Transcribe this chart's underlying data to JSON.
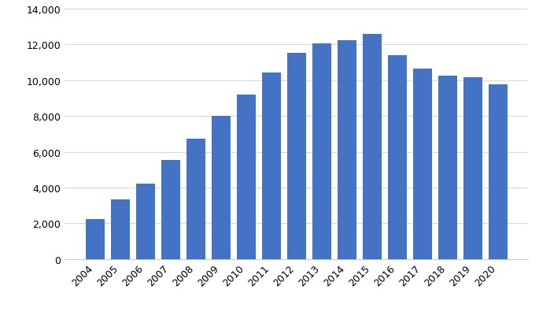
{
  "categories": [
    "2004",
    "2005",
    "2006",
    "2007",
    "2008",
    "2009",
    "2010",
    "2011",
    "2012",
    "2013",
    "2014",
    "2015",
    "2016",
    "2017",
    "2018",
    "2019",
    "2020"
  ],
  "values": [
    2250,
    3350,
    4200,
    5550,
    6750,
    8000,
    9200,
    10450,
    11550,
    12050,
    12250,
    12600,
    11400,
    10650,
    10250,
    10150,
    9750
  ],
  "bar_color": "#4472C4",
  "ylim": [
    0,
    14000
  ],
  "yticks": [
    0,
    2000,
    4000,
    6000,
    8000,
    10000,
    12000,
    14000
  ],
  "background_color": "#ffffff",
  "grid_color": "#d9d9d9",
  "bar_width": 0.75
}
